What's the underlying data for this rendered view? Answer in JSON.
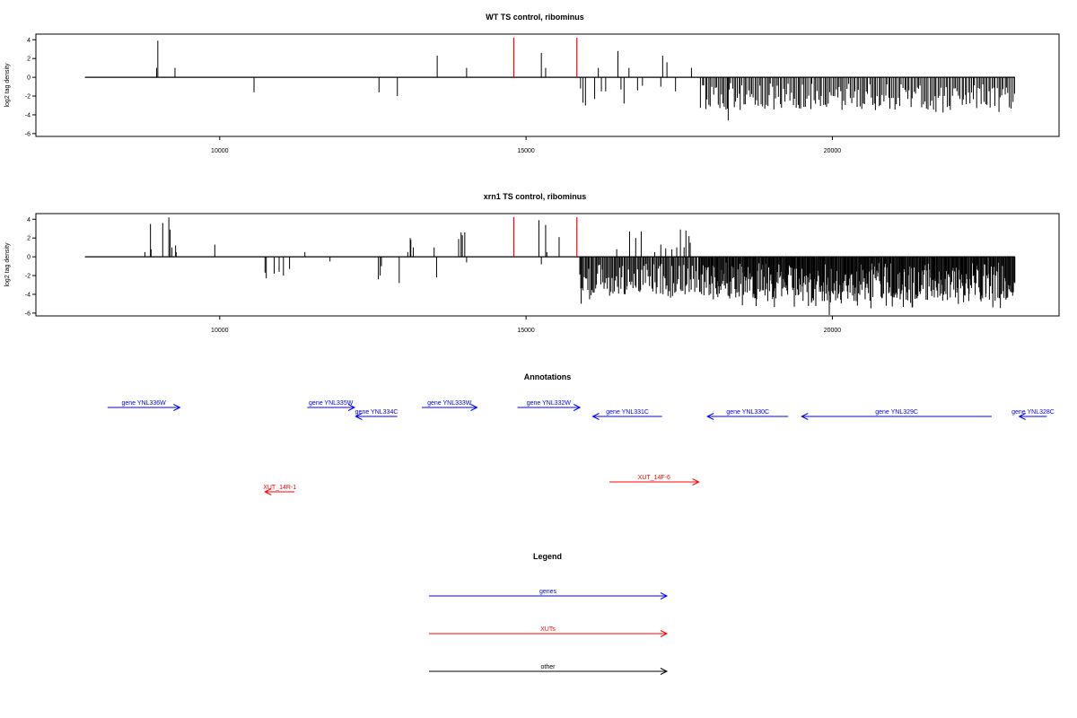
{
  "colors": {
    "bar": "#000000",
    "marker": "#ff0000",
    "gene": "#0000ff",
    "xut": "#ff0000",
    "other": "#000000"
  },
  "chart_data": [
    {
      "type": "bar",
      "title": "WT TS control, ribominus",
      "ylabel": "log2 tag density",
      "xlabel": "",
      "xlim": [
        7000,
        23700
      ],
      "ylim": [
        -6.3,
        4.6
      ],
      "xticks": [
        10000,
        15000,
        20000
      ],
      "yticks": [
        4,
        2,
        0,
        -2,
        -4,
        -6
      ],
      "markers": [
        14800,
        15830
      ],
      "bars": [
        [
          8970,
          1.0
        ],
        [
          8990,
          3.9
        ],
        [
          9270,
          1.0
        ],
        [
          10560,
          -1.6
        ],
        [
          12600,
          -1.6
        ],
        [
          12900,
          -2.0
        ],
        [
          13550,
          2.3
        ],
        [
          14030,
          1.0
        ],
        [
          15250,
          2.6
        ],
        [
          15320,
          1.0
        ],
        [
          15890,
          -1.2
        ],
        [
          15930,
          -2.7
        ],
        [
          15970,
          -3.0
        ],
        [
          16120,
          -2.3
        ],
        [
          16180,
          1.0
        ],
        [
          16230,
          -1.5
        ],
        [
          16300,
          -1.5
        ],
        [
          16500,
          2.8
        ],
        [
          16550,
          -1.3
        ],
        [
          16600,
          -2.8
        ],
        [
          16680,
          1.0
        ],
        [
          16820,
          -1.4
        ],
        [
          16900,
          -0.9
        ],
        [
          17200,
          -1.0
        ],
        [
          17230,
          2.3
        ],
        [
          17300,
          1.6
        ],
        [
          17440,
          -1.5
        ],
        [
          17700,
          1.0
        ]
      ],
      "dense": [
        {
          "from": 17850,
          "to": 22980,
          "step": 26,
          "max": 3.8,
          "peak_at": 18300,
          "peak": -4.6,
          "seed": 7
        }
      ]
    },
    {
      "type": "bar",
      "title": "xrn1 TS control, ribominus",
      "ylabel": "log2 tag density",
      "xlabel": "",
      "xlim": [
        7000,
        23700
      ],
      "ylim": [
        -6.3,
        4.6
      ],
      "xticks": [
        10000,
        15000,
        20000
      ],
      "yticks": [
        4,
        2,
        0,
        -2,
        -4,
        -6
      ],
      "markers": [
        14800,
        15830
      ],
      "bars": [
        [
          8780,
          0.5
        ],
        [
          8870,
          3.5
        ],
        [
          8880,
          0.8
        ],
        [
          9070,
          3.6
        ],
        [
          9170,
          4.2
        ],
        [
          9190,
          2.9
        ],
        [
          9220,
          1.0
        ],
        [
          9280,
          1.2
        ],
        [
          9290,
          0.5
        ],
        [
          9920,
          1.3
        ],
        [
          10740,
          -1.7
        ],
        [
          10760,
          -2.3
        ],
        [
          10890,
          -1.8
        ],
        [
          10970,
          -1.6
        ],
        [
          11040,
          -2.0
        ],
        [
          11140,
          -1.3
        ],
        [
          11390,
          0.5
        ],
        [
          11800,
          -0.5
        ],
        [
          12590,
          -2.4
        ],
        [
          12620,
          -2.0
        ],
        [
          12640,
          -1.0
        ],
        [
          12930,
          -2.8
        ],
        [
          13070,
          0.5
        ],
        [
          13110,
          2.0
        ],
        [
          13120,
          1.8
        ],
        [
          13160,
          1.0
        ],
        [
          13500,
          1.0
        ],
        [
          13540,
          -2.2
        ],
        [
          13900,
          1.9
        ],
        [
          13940,
          2.6
        ],
        [
          13960,
          2.3
        ],
        [
          14000,
          2.6
        ],
        [
          14030,
          -0.6
        ],
        [
          15210,
          3.9
        ],
        [
          15250,
          -0.8
        ],
        [
          15320,
          3.4
        ],
        [
          15340,
          0.5
        ],
        [
          15540,
          2.1
        ],
        [
          16480,
          0.8
        ],
        [
          16690,
          2.7
        ],
        [
          16790,
          2.0
        ],
        [
          16880,
          2.7
        ],
        [
          17100,
          0.5
        ],
        [
          17200,
          1.3
        ],
        [
          17280,
          0.9
        ],
        [
          17380,
          0.8
        ],
        [
          17460,
          1.0
        ],
        [
          17520,
          2.9
        ],
        [
          17580,
          1.0
        ],
        [
          17610,
          2.8
        ],
        [
          17660,
          2.2
        ],
        [
          17680,
          1.5
        ]
      ],
      "dense": [
        {
          "from": 15880,
          "to": 17800,
          "step": 18,
          "max": 4.8,
          "peak_at": 15900,
          "peak": -5.0,
          "seed": 11
        },
        {
          "from": 17820,
          "to": 22980,
          "step": 12,
          "max": 5.5,
          "peak_at": 19950,
          "peak": -6.2,
          "seed": 23
        }
      ]
    }
  ],
  "annotations": {
    "title": "Annotations",
    "genes": [
      {
        "label": "gene YNL336W",
        "dir": "right",
        "x1": 8170,
        "x2": 9350,
        "row": 0
      },
      {
        "label": "gene YNL335W",
        "dir": "right",
        "x1": 11430,
        "x2": 12200,
        "row": 0
      },
      {
        "label": "gene YNL334C",
        "dir": "left",
        "x1": 12220,
        "x2": 12900,
        "row": 1
      },
      {
        "label": "gene YNL333W",
        "dir": "right",
        "x1": 13300,
        "x2": 14200,
        "row": 0
      },
      {
        "label": "gene YNL332W",
        "dir": "right",
        "x1": 14860,
        "x2": 15880,
        "row": 0
      },
      {
        "label": "gene YNL331C",
        "dir": "left",
        "x1": 16090,
        "x2": 17220,
        "row": 1
      },
      {
        "label": "gene YNL330C",
        "dir": "left",
        "x1": 17960,
        "x2": 19280,
        "row": 1
      },
      {
        "label": "gene YNL329C",
        "dir": "left",
        "x1": 19500,
        "x2": 22600,
        "row": 1
      },
      {
        "label": "gene YNL328C",
        "dir": "left",
        "x1": 23050,
        "x2": 23500,
        "row": 1
      }
    ],
    "xuts": [
      {
        "label": "XUT_14R-1",
        "dir": "left",
        "x1": 10740,
        "x2": 11220,
        "row": 3
      },
      {
        "label": "XUT_14F-6",
        "dir": "right",
        "x1": 16360,
        "x2": 17820,
        "row": 2
      }
    ]
  },
  "legend": {
    "title": "Legend",
    "entries": [
      {
        "label": "genes",
        "color_key": "gene"
      },
      {
        "label": "XUTs",
        "color_key": "xut"
      },
      {
        "label": "other",
        "color_key": "other"
      }
    ]
  }
}
